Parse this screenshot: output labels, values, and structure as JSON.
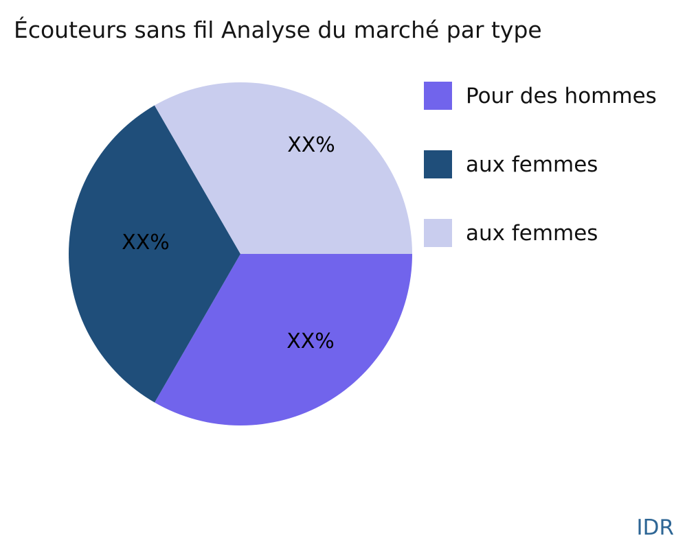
{
  "title": "Écouteurs sans fil Analyse du marché par type",
  "watermark": "IDR",
  "colors": {
    "slice_purple": "#7164ec",
    "slice_dark_blue": "#1f4e7a",
    "slice_lavender": "#c9cdee",
    "label_color": "#000000",
    "title_color": "#151515",
    "watermark_color": "#2e6695",
    "background": "#ffffff"
  },
  "chart_data": {
    "type": "pie",
    "title": "Écouteurs sans fil Analyse du marché par type",
    "categories": [
      "Pour des hommes",
      "aux femmes",
      "aux femmes"
    ],
    "values": [
      33.33,
      33.33,
      33.34
    ],
    "value_labels": [
      "XX%",
      "XX%",
      "XX%"
    ],
    "colors": [
      "#7164ec",
      "#1f4e7a",
      "#c9cdee"
    ],
    "start_angle_deg": 0,
    "direction": "clockwise",
    "legend_position": "right",
    "labels_inside": true
  },
  "legend": {
    "items": [
      {
        "label": "Pour des hommes",
        "color": "#7164ec"
      },
      {
        "label": "aux femmes",
        "color": "#1f4e7a"
      },
      {
        "label": "aux femmes",
        "color": "#c9cdee"
      }
    ]
  }
}
